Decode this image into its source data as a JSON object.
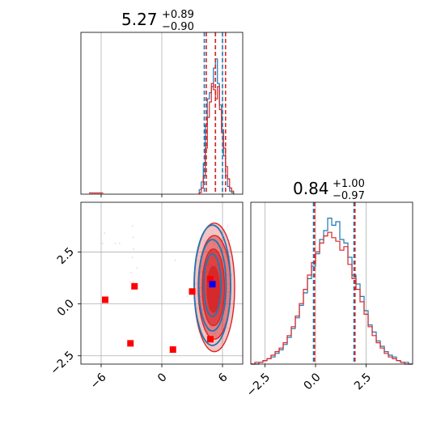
{
  "colors": {
    "blue": "#1f77b4",
    "red": "#d62728",
    "marker_red": "#ff0000",
    "marker_blue": "#0000ff",
    "grid": "#b0b0b0"
  },
  "chart_data": {
    "type": "corner",
    "top_panel": {
      "title": {
        "median": "5.27",
        "plus": "+0.89",
        "minus": "−0.90"
      },
      "xlim": [
        -8,
        8
      ],
      "quantile_lines": {
        "blue": [
          4.2,
          5.3,
          6.0
        ],
        "red": [
          4.4,
          5.3,
          6.3
        ]
      },
      "xticks": [
        -6,
        0,
        6
      ],
      "series": [
        {
          "color_key": "blue",
          "bins": [
            3.7,
            3.9,
            4.1,
            4.3,
            4.5,
            4.7,
            4.9,
            5.1,
            5.3,
            5.5,
            5.7,
            5.9,
            6.1,
            6.3,
            6.5,
            6.7,
            6.9,
            7.1
          ],
          "counts": [
            0.03,
            0.08,
            0.2,
            0.45,
            0.62,
            0.66,
            0.7,
            0.82,
            0.88,
            0.72,
            0.58,
            0.42,
            0.25,
            0.12,
            0.05,
            0.02,
            0.01
          ]
        },
        {
          "color_key": "red",
          "bins": [
            3.7,
            3.9,
            4.1,
            4.3,
            4.5,
            4.7,
            4.9,
            5.1,
            5.3,
            5.5,
            5.7,
            5.9,
            6.1,
            6.3,
            6.5,
            6.7,
            6.9,
            7.1
          ],
          "counts": [
            0.01,
            0.04,
            0.12,
            0.3,
            0.5,
            0.6,
            0.72,
            0.68,
            0.62,
            0.7,
            0.55,
            0.4,
            0.3,
            0.18,
            0.1,
            0.04,
            0.02
          ]
        }
      ]
    },
    "right_panel": {
      "title": {
        "median": "0.84",
        "plus": "+1.00",
        "minus": "−0.97"
      },
      "xlim": [
        -3.2,
        4.8
      ],
      "xticks": [
        -2.5,
        0.0,
        2.5
      ],
      "xtick_labels": [
        "−2.5",
        "0.0",
        "2.5"
      ],
      "quantile_lines": {
        "blue": [
          -0.1,
          1.9
        ],
        "red": [
          -0.05,
          1.95
        ]
      },
      "series": [
        {
          "color_key": "blue",
          "bins": [
            -3.2,
            -3.0,
            -2.8,
            -2.6,
            -2.4,
            -2.2,
            -2.0,
            -1.8,
            -1.6,
            -1.4,
            -1.2,
            -1.0,
            -0.8,
            -0.6,
            -0.4,
            -0.2,
            0.0,
            0.2,
            0.4,
            0.6,
            0.8,
            1.0,
            1.2,
            1.4,
            1.6,
            1.8,
            2.0,
            2.2,
            2.4,
            2.6,
            2.8,
            3.0,
            3.2,
            3.4,
            3.6,
            3.8,
            4.0,
            4.2,
            4.4,
            4.6,
            4.8
          ],
          "counts": [
            0.0,
            0.0,
            0.01,
            0.02,
            0.03,
            0.04,
            0.06,
            0.08,
            0.11,
            0.15,
            0.2,
            0.26,
            0.33,
            0.4,
            0.48,
            0.55,
            0.62,
            0.7,
            0.75,
            0.82,
            0.78,
            0.8,
            0.7,
            0.68,
            0.6,
            0.5,
            0.45,
            0.38,
            0.3,
            0.22,
            0.18,
            0.13,
            0.1,
            0.07,
            0.05,
            0.04,
            0.02,
            0.01,
            0.01,
            0.0
          ]
        },
        {
          "color_key": "red",
          "bins": [
            -3.2,
            -3.0,
            -2.8,
            -2.6,
            -2.4,
            -2.2,
            -2.0,
            -1.8,
            -1.6,
            -1.4,
            -1.2,
            -1.0,
            -0.8,
            -0.6,
            -0.4,
            -0.2,
            0.0,
            0.2,
            0.4,
            0.6,
            0.8,
            1.0,
            1.2,
            1.4,
            1.6,
            1.8,
            2.0,
            2.2,
            2.4,
            2.6,
            2.8,
            3.0,
            3.2,
            3.4,
            3.6,
            3.8,
            4.0,
            4.2,
            4.4,
            4.6,
            4.8
          ],
          "counts": [
            0.0,
            0.01,
            0.01,
            0.02,
            0.03,
            0.05,
            0.07,
            0.09,
            0.12,
            0.16,
            0.21,
            0.27,
            0.34,
            0.42,
            0.5,
            0.57,
            0.63,
            0.68,
            0.72,
            0.74,
            0.71,
            0.69,
            0.64,
            0.66,
            0.56,
            0.48,
            0.42,
            0.35,
            0.28,
            0.21,
            0.16,
            0.12,
            0.09,
            0.06,
            0.04,
            0.03,
            0.02,
            0.01,
            0.0,
            0.0
          ]
        }
      ]
    },
    "joint_panel": {
      "xlim": [
        -8,
        8
      ],
      "ylim": [
        -2.9,
        4.9
      ],
      "xticks": [
        -6,
        0,
        6
      ],
      "xtick_labels": [
        "−6",
        "0",
        "6"
      ],
      "yticks": [
        -2.5,
        0.0,
        2.5
      ],
      "ytick_labels": [
        "−2.5",
        "0.0",
        "2.5"
      ],
      "red_markers": [
        {
          "x": -5.6,
          "y": 0.2
        },
        {
          "x": -2.7,
          "y": 0.85
        },
        {
          "x": -3.1,
          "y": -1.9
        },
        {
          "x": 1.1,
          "y": -2.2
        },
        {
          "x": 3.0,
          "y": 0.6
        },
        {
          "x": 4.8,
          "y": -1.7
        },
        {
          "x": 4.8,
          "y": 1.2
        }
      ],
      "blue_markers": [
        {
          "x": 5.0,
          "y": 0.95
        }
      ],
      "contours_red": [
        {
          "cx": 5.2,
          "cy": 0.8,
          "rx": 2.0,
          "ry": 3.1,
          "fill_opacity": 0.28
        },
        {
          "cx": 5.2,
          "cy": 0.8,
          "rx": 1.6,
          "ry": 2.5,
          "fill_opacity": 0.45
        },
        {
          "cx": 5.1,
          "cy": 0.8,
          "rx": 1.1,
          "ry": 1.85,
          "fill_opacity": 0.65
        },
        {
          "cx": 5.1,
          "cy": 0.7,
          "rx": 0.6,
          "ry": 1.1,
          "fill_opacity": 0.9
        }
      ],
      "contours_blue": [
        {
          "cx": 5.0,
          "cy": 0.9,
          "rx": 1.8,
          "ry": 2.9
        },
        {
          "cx": 5.0,
          "cy": 0.9,
          "rx": 1.35,
          "ry": 2.2
        },
        {
          "cx": 5.0,
          "cy": 0.9,
          "rx": 0.85,
          "ry": 1.5
        }
      ]
    }
  }
}
